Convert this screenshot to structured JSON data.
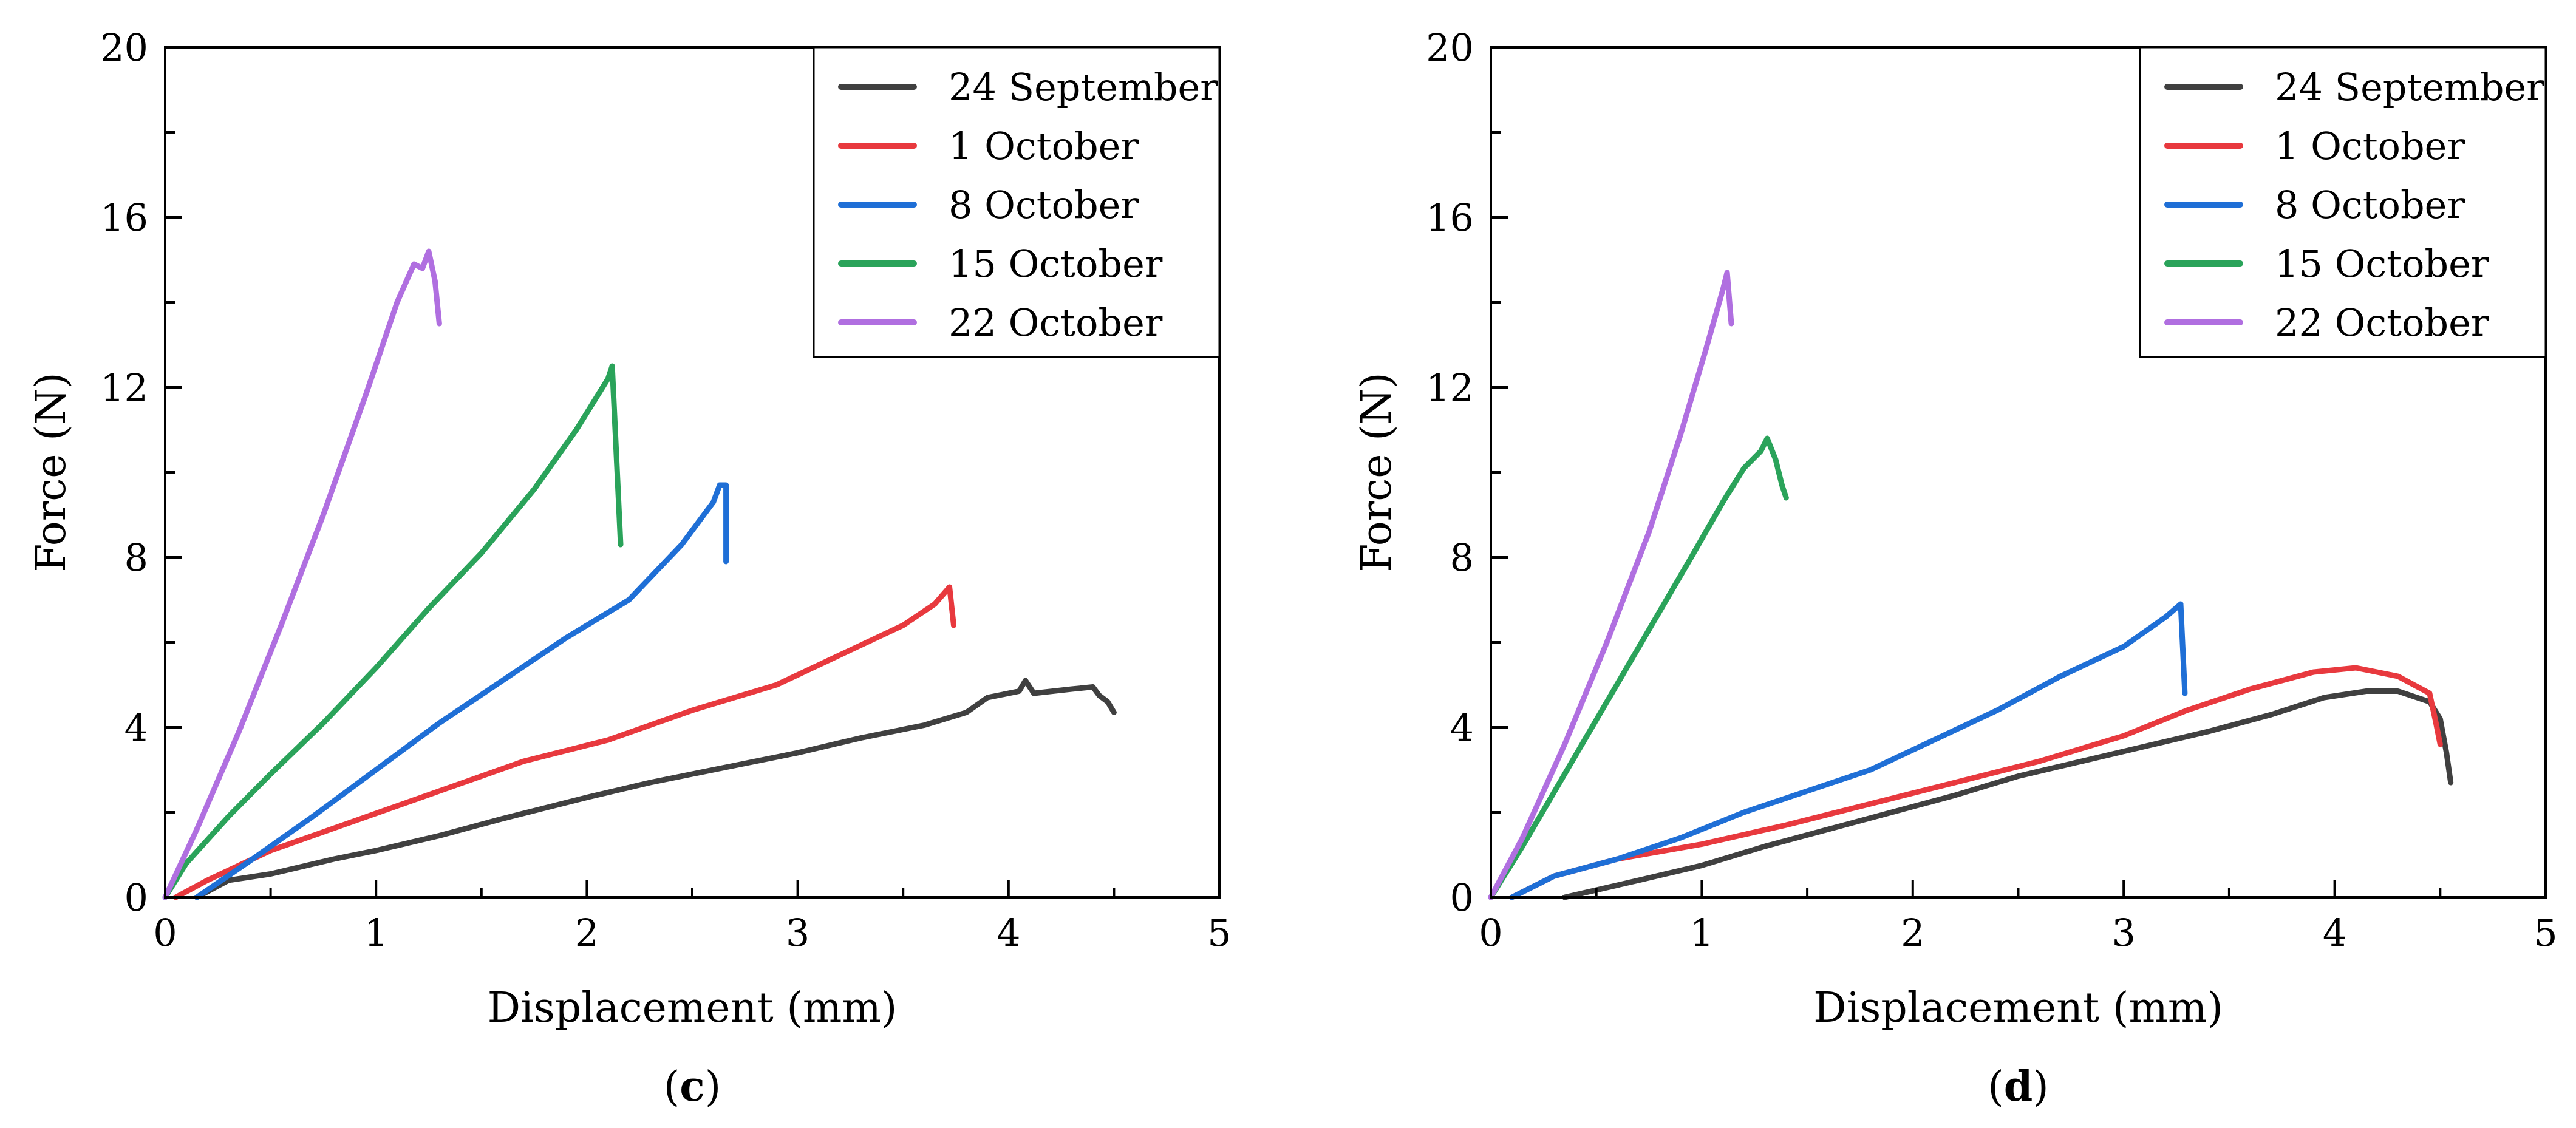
{
  "chart_data": [
    {
      "type": "line",
      "panel_label": "c",
      "xlabel": "Displacement (mm)",
      "ylabel": "Force (N)",
      "xlim": [
        0,
        5
      ],
      "ylim": [
        0,
        20
      ],
      "xticks": [
        0,
        1,
        2,
        3,
        4,
        5
      ],
      "yticks": [
        0,
        4,
        8,
        12,
        16,
        20
      ],
      "grid": false,
      "legend_position": "top-right",
      "series": [
        {
          "name": "24 September",
          "color": "#404040",
          "points": [
            [
              0.15,
              0
            ],
            [
              0.3,
              0.4
            ],
            [
              0.5,
              0.55
            ],
            [
              0.8,
              0.9
            ],
            [
              1.0,
              1.1
            ],
            [
              1.3,
              1.45
            ],
            [
              1.6,
              1.85
            ],
            [
              2.0,
              2.35
            ],
            [
              2.3,
              2.7
            ],
            [
              2.7,
              3.1
            ],
            [
              3.0,
              3.4
            ],
            [
              3.3,
              3.75
            ],
            [
              3.6,
              4.05
            ],
            [
              3.8,
              4.35
            ],
            [
              3.9,
              4.7
            ],
            [
              4.05,
              4.85
            ],
            [
              4.08,
              5.1
            ],
            [
              4.12,
              4.8
            ],
            [
              4.3,
              4.9
            ],
            [
              4.4,
              4.95
            ],
            [
              4.43,
              4.75
            ],
            [
              4.47,
              4.6
            ],
            [
              4.5,
              4.35
            ]
          ]
        },
        {
          "name": "1 October",
          "color": "#e8393e",
          "points": [
            [
              0.05,
              0
            ],
            [
              0.2,
              0.4
            ],
            [
              0.5,
              1.1
            ],
            [
              0.9,
              1.8
            ],
            [
              1.3,
              2.5
            ],
            [
              1.7,
              3.2
            ],
            [
              2.1,
              3.7
            ],
            [
              2.5,
              4.4
            ],
            [
              2.9,
              5.0
            ],
            [
              3.2,
              5.7
            ],
            [
              3.5,
              6.4
            ],
            [
              3.65,
              6.9
            ],
            [
              3.72,
              7.3
            ],
            [
              3.74,
              6.4
            ]
          ]
        },
        {
          "name": "8 October",
          "color": "#1f6fd6",
          "points": [
            [
              0.15,
              0
            ],
            [
              0.4,
              0.85
            ],
            [
              0.7,
              1.9
            ],
            [
              1.0,
              3.0
            ],
            [
              1.3,
              4.1
            ],
            [
              1.6,
              5.1
            ],
            [
              1.9,
              6.1
            ],
            [
              2.2,
              7.0
            ],
            [
              2.45,
              8.3
            ],
            [
              2.6,
              9.3
            ],
            [
              2.63,
              9.7
            ],
            [
              2.66,
              9.7
            ],
            [
              2.66,
              7.9
            ]
          ]
        },
        {
          "name": "15 October",
          "color": "#2aa35a",
          "points": [
            [
              0,
              0
            ],
            [
              0.1,
              0.8
            ],
            [
              0.3,
              1.9
            ],
            [
              0.5,
              2.9
            ],
            [
              0.75,
              4.1
            ],
            [
              1.0,
              5.4
            ],
            [
              1.25,
              6.8
            ],
            [
              1.5,
              8.1
            ],
            [
              1.75,
              9.6
            ],
            [
              1.95,
              11.0
            ],
            [
              2.1,
              12.2
            ],
            [
              2.12,
              12.5
            ],
            [
              2.16,
              8.3
            ]
          ]
        },
        {
          "name": "22 October",
          "color": "#b06fe0",
          "points": [
            [
              0,
              0
            ],
            [
              0.15,
              1.6
            ],
            [
              0.35,
              3.9
            ],
            [
              0.55,
              6.4
            ],
            [
              0.75,
              9.0
            ],
            [
              0.95,
              11.8
            ],
            [
              1.1,
              14.0
            ],
            [
              1.18,
              14.9
            ],
            [
              1.22,
              14.8
            ],
            [
              1.25,
              15.2
            ],
            [
              1.28,
              14.5
            ],
            [
              1.3,
              13.5
            ]
          ]
        }
      ]
    },
    {
      "type": "line",
      "panel_label": "d",
      "xlabel": "Displacement (mm)",
      "ylabel": "Force (N)",
      "xlim": [
        0,
        5
      ],
      "ylim": [
        0,
        20
      ],
      "xticks": [
        0,
        1,
        2,
        3,
        4,
        5
      ],
      "yticks": [
        0,
        4,
        8,
        12,
        16,
        20
      ],
      "grid": false,
      "legend_position": "top-right",
      "series": [
        {
          "name": "24 September",
          "color": "#404040",
          "points": [
            [
              0.35,
              0
            ],
            [
              0.7,
              0.4
            ],
            [
              1.0,
              0.75
            ],
            [
              1.3,
              1.2
            ],
            [
              1.6,
              1.6
            ],
            [
              1.9,
              2.0
            ],
            [
              2.2,
              2.4
            ],
            [
              2.5,
              2.85
            ],
            [
              2.8,
              3.2
            ],
            [
              3.1,
              3.55
            ],
            [
              3.4,
              3.9
            ],
            [
              3.7,
              4.3
            ],
            [
              3.95,
              4.7
            ],
            [
              4.15,
              4.85
            ],
            [
              4.3,
              4.85
            ],
            [
              4.45,
              4.6
            ],
            [
              4.5,
              4.2
            ],
            [
              4.53,
              3.4
            ],
            [
              4.55,
              2.7
            ]
          ]
        },
        {
          "name": "1 October",
          "color": "#e8393e",
          "points": [
            [
              0.1,
              0
            ],
            [
              0.3,
              0.5
            ],
            [
              0.6,
              0.9
            ],
            [
              1.0,
              1.25
            ],
            [
              1.4,
              1.7
            ],
            [
              1.8,
              2.2
            ],
            [
              2.2,
              2.7
            ],
            [
              2.6,
              3.2
            ],
            [
              3.0,
              3.8
            ],
            [
              3.3,
              4.4
            ],
            [
              3.6,
              4.9
            ],
            [
              3.9,
              5.3
            ],
            [
              4.1,
              5.4
            ],
            [
              4.3,
              5.2
            ],
            [
              4.45,
              4.8
            ],
            [
              4.48,
              4.1
            ],
            [
              4.5,
              3.6
            ]
          ]
        },
        {
          "name": "8 October",
          "color": "#1f6fd6",
          "points": [
            [
              0.1,
              0
            ],
            [
              0.3,
              0.5
            ],
            [
              0.6,
              0.9
            ],
            [
              0.9,
              1.4
            ],
            [
              1.2,
              2.0
            ],
            [
              1.5,
              2.5
            ],
            [
              1.8,
              3.0
            ],
            [
              2.1,
              3.7
            ],
            [
              2.4,
              4.4
            ],
            [
              2.7,
              5.2
            ],
            [
              3.0,
              5.9
            ],
            [
              3.2,
              6.6
            ],
            [
              3.27,
              6.9
            ],
            [
              3.29,
              4.8
            ]
          ]
        },
        {
          "name": "15 October",
          "color": "#2aa35a",
          "points": [
            [
              0,
              0
            ],
            [
              0.15,
              1.2
            ],
            [
              0.35,
              2.9
            ],
            [
              0.55,
              4.6
            ],
            [
              0.75,
              6.3
            ],
            [
              0.95,
              8.0
            ],
            [
              1.1,
              9.3
            ],
            [
              1.2,
              10.1
            ],
            [
              1.28,
              10.5
            ],
            [
              1.31,
              10.8
            ],
            [
              1.35,
              10.3
            ],
            [
              1.38,
              9.7
            ],
            [
              1.4,
              9.4
            ]
          ]
        },
        {
          "name": "22 October",
          "color": "#b06fe0",
          "points": [
            [
              0,
              0
            ],
            [
              0.15,
              1.4
            ],
            [
              0.35,
              3.6
            ],
            [
              0.55,
              6.0
            ],
            [
              0.75,
              8.6
            ],
            [
              0.9,
              10.9
            ],
            [
              1.02,
              12.9
            ],
            [
              1.1,
              14.3
            ],
            [
              1.12,
              14.7
            ],
            [
              1.14,
              13.5
            ]
          ]
        }
      ]
    }
  ]
}
